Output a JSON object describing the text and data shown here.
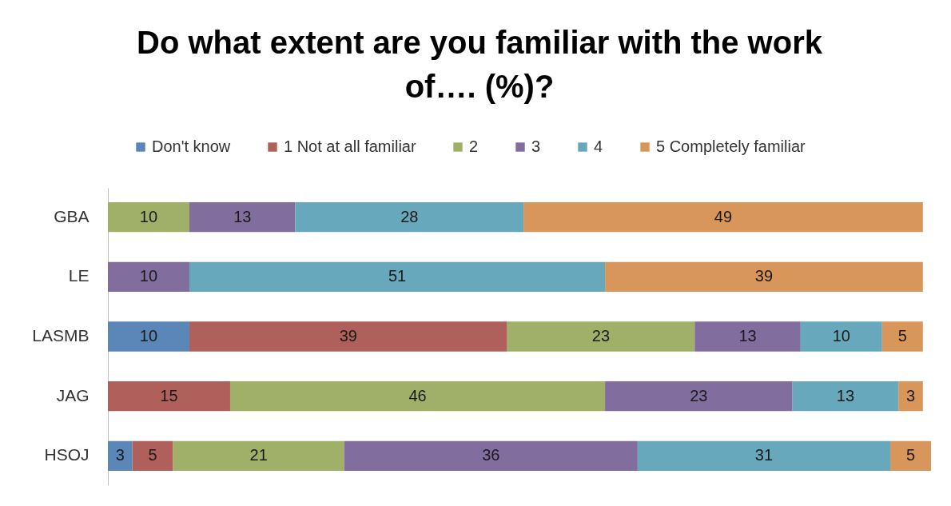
{
  "chart_data": {
    "type": "bar",
    "orientation": "horizontal",
    "stacked": true,
    "data_labels": true,
    "legend": "top",
    "title": "Do what extent are you familiar with the work of…. (%)?",
    "categories": [
      "GBA",
      "LE",
      "LASMB",
      "JAG",
      "HSOJ"
    ],
    "series": [
      {
        "name": "Don't know",
        "color": "#5b87b8",
        "values": [
          null,
          null,
          10,
          null,
          3
        ]
      },
      {
        "name": "1 Not at all familiar",
        "color": "#b0605a",
        "values": [
          null,
          null,
          39,
          15,
          5
        ]
      },
      {
        "name": "2",
        "color": "#a0b068",
        "values": [
          10,
          null,
          23,
          46,
          21
        ]
      },
      {
        "name": "3",
        "color": "#826e9e",
        "values": [
          13,
          10,
          13,
          23,
          36
        ]
      },
      {
        "name": "4",
        "color": "#67a8bc",
        "values": [
          28,
          51,
          10,
          13,
          31
        ]
      },
      {
        "name": "5 Completely familiar",
        "color": "#d9965a",
        "values": [
          49,
          39,
          5,
          3,
          5
        ]
      }
    ]
  }
}
